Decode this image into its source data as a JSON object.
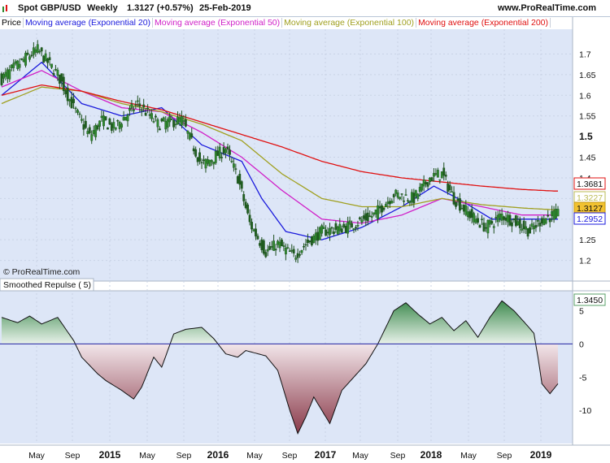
{
  "header": {
    "symbol": "Spot GBP/USD",
    "period": "Weekly",
    "last": "1.3127 (+0.57%)",
    "date": "25-Feb-2019",
    "site": "www.ProRealTime.com"
  },
  "legend": [
    {
      "label": "Price",
      "color": "#000000"
    },
    {
      "label": "Moving average (Exponential 20)",
      "color": "#1a1adc"
    },
    {
      "label": "Moving average (Exponential 50)",
      "color": "#d020c8"
    },
    {
      "label": "Moving average (Exponential 100)",
      "color": "#a0a020"
    },
    {
      "label": "Moving average (Exponential 200)",
      "color": "#e01010"
    }
  ],
  "watermark": "© ProRealTime.com",
  "indicator_title": "Smoothed Repulse ( 5)",
  "colors": {
    "background": "#dde6f7",
    "candle_up": "#2f8a2f",
    "candle_down": "#1f5e1f",
    "ema20": "#1a1adc",
    "ema50": "#d020c8",
    "ema100": "#a0a020",
    "ema200": "#e01010",
    "zero_line": "#2020a0",
    "repulse_pos": "#5aa06a",
    "repulse_neg": "#a05060"
  },
  "chart_data": [
    {
      "type": "candlestick",
      "title": "Spot GBP/USD Weekly",
      "ylim": [
        1.15,
        1.76
      ],
      "y_ticks": [
        "1.7",
        "1.65",
        "1.6",
        "1.55",
        "1.5",
        "1.45",
        "1.4",
        "1.35",
        "1.3",
        "1.25",
        "1.2"
      ],
      "x_ticks": [
        "May",
        "Sep",
        "2015",
        "May",
        "Sep",
        "2016",
        "May",
        "Sep",
        "2017",
        "May",
        "Sep",
        "2018",
        "May",
        "Sep",
        "2019"
      ],
      "price_keypoints": [
        [
          0,
          1.64
        ],
        [
          12,
          1.69
        ],
        [
          18,
          1.71
        ],
        [
          28,
          1.65
        ],
        [
          36,
          1.57
        ],
        [
          44,
          1.5
        ],
        [
          50,
          1.54
        ],
        [
          56,
          1.52
        ],
        [
          68,
          1.58
        ],
        [
          78,
          1.53
        ],
        [
          90,
          1.54
        ],
        [
          100,
          1.43
        ],
        [
          112,
          1.47
        ],
        [
          118,
          1.4
        ],
        [
          124,
          1.29
        ],
        [
          132,
          1.22
        ],
        [
          138,
          1.24
        ],
        [
          146,
          1.21
        ],
        [
          152,
          1.24
        ],
        [
          160,
          1.27
        ],
        [
          172,
          1.28
        ],
        [
          186,
          1.31
        ],
        [
          196,
          1.36
        ],
        [
          206,
          1.35
        ],
        [
          214,
          1.4
        ],
        [
          220,
          1.41
        ],
        [
          226,
          1.35
        ],
        [
          234,
          1.31
        ],
        [
          242,
          1.28
        ],
        [
          250,
          1.31
        ],
        [
          258,
          1.29
        ],
        [
          264,
          1.27
        ],
        [
          270,
          1.3
        ],
        [
          276,
          1.31
        ]
      ],
      "series": [
        {
          "name": "Moving average (Exponential 20)",
          "values": [
            [
              0,
              1.6
            ],
            [
              20,
              1.68
            ],
            [
              40,
              1.58
            ],
            [
              60,
              1.55
            ],
            [
              80,
              1.57
            ],
            [
              100,
              1.48
            ],
            [
              120,
              1.44
            ],
            [
              130,
              1.35
            ],
            [
              142,
              1.27
            ],
            [
              160,
              1.25
            ],
            [
              180,
              1.28
            ],
            [
              200,
              1.33
            ],
            [
              216,
              1.38
            ],
            [
              228,
              1.35
            ],
            [
              245,
              1.3
            ],
            [
              262,
              1.3
            ],
            [
              276,
              1.3
            ]
          ]
        },
        {
          "name": "Moving average (Exponential 50)",
          "values": [
            [
              0,
              1.62
            ],
            [
              20,
              1.66
            ],
            [
              40,
              1.61
            ],
            [
              60,
              1.57
            ],
            [
              80,
              1.56
            ],
            [
              100,
              1.51
            ],
            [
              120,
              1.45
            ],
            [
              140,
              1.37
            ],
            [
              160,
              1.3
            ],
            [
              180,
              1.29
            ],
            [
              200,
              1.31
            ],
            [
              220,
              1.35
            ],
            [
              240,
              1.33
            ],
            [
              260,
              1.31
            ],
            [
              276,
              1.31
            ]
          ]
        },
        {
          "name": "Moving average (Exponential 100)",
          "values": [
            [
              0,
              1.58
            ],
            [
              20,
              1.62
            ],
            [
              40,
              1.61
            ],
            [
              60,
              1.58
            ],
            [
              80,
              1.56
            ],
            [
              100,
              1.53
            ],
            [
              120,
              1.49
            ],
            [
              140,
              1.41
            ],
            [
              160,
              1.35
            ],
            [
              180,
              1.33
            ],
            [
              200,
              1.33
            ],
            [
              220,
              1.35
            ],
            [
              240,
              1.335
            ],
            [
              260,
              1.327
            ],
            [
              276,
              1.3227
            ]
          ]
        },
        {
          "name": "Moving average (Exponential 200)",
          "values": [
            [
              0,
              1.6
            ],
            [
              20,
              1.625
            ],
            [
              40,
              1.61
            ],
            [
              60,
              1.585
            ],
            [
              80,
              1.565
            ],
            [
              100,
              1.535
            ],
            [
              120,
              1.505
            ],
            [
              140,
              1.475
            ],
            [
              160,
              1.44
            ],
            [
              180,
              1.415
            ],
            [
              200,
              1.4
            ],
            [
              220,
              1.39
            ],
            [
              240,
              1.38
            ],
            [
              260,
              1.372
            ],
            [
              276,
              1.3681
            ]
          ]
        }
      ],
      "last_values": {
        "price": "1.3127",
        "ema200": "1.3681",
        "ema100": "1.3227",
        "ema50": "1.3127",
        "ema20": "1.2952"
      }
    },
    {
      "type": "area",
      "title": "Smoothed Repulse ( 5)",
      "ylim": [
        -15,
        8
      ],
      "y_ticks": [
        "5",
        "0",
        "-5",
        "-10"
      ],
      "values": [
        [
          0,
          4
        ],
        [
          8,
          3.2
        ],
        [
          14,
          4.2
        ],
        [
          20,
          3
        ],
        [
          28,
          4
        ],
        [
          36,
          0.5
        ],
        [
          40,
          -2
        ],
        [
          48,
          -4.5
        ],
        [
          52,
          -5.5
        ],
        [
          60,
          -7
        ],
        [
          66,
          -8.3
        ],
        [
          70,
          -6.5
        ],
        [
          76,
          -2
        ],
        [
          80,
          -3.5
        ],
        [
          86,
          1.5
        ],
        [
          92,
          2.2
        ],
        [
          100,
          2.5
        ],
        [
          106,
          0.8
        ],
        [
          112,
          -1.5
        ],
        [
          118,
          -2
        ],
        [
          122,
          -1
        ],
        [
          132,
          -1.8
        ],
        [
          138,
          -4
        ],
        [
          144,
          -10
        ],
        [
          148,
          -13.5
        ],
        [
          152,
          -11
        ],
        [
          156,
          -8
        ],
        [
          160,
          -10
        ],
        [
          164,
          -12
        ],
        [
          170,
          -7
        ],
        [
          176,
          -5
        ],
        [
          182,
          -3
        ],
        [
          188,
          0
        ],
        [
          196,
          5
        ],
        [
          202,
          6.2
        ],
        [
          208,
          4.5
        ],
        [
          214,
          3
        ],
        [
          220,
          4
        ],
        [
          226,
          2
        ],
        [
          232,
          3.5
        ],
        [
          238,
          1
        ],
        [
          244,
          4
        ],
        [
          250,
          6.5
        ],
        [
          256,
          5
        ],
        [
          262,
          3
        ],
        [
          266,
          1.6
        ],
        [
          268,
          -2
        ],
        [
          270,
          -6
        ],
        [
          274,
          -7.5
        ],
        [
          278,
          -6
        ]
      ],
      "last_value": "1.3450"
    }
  ]
}
